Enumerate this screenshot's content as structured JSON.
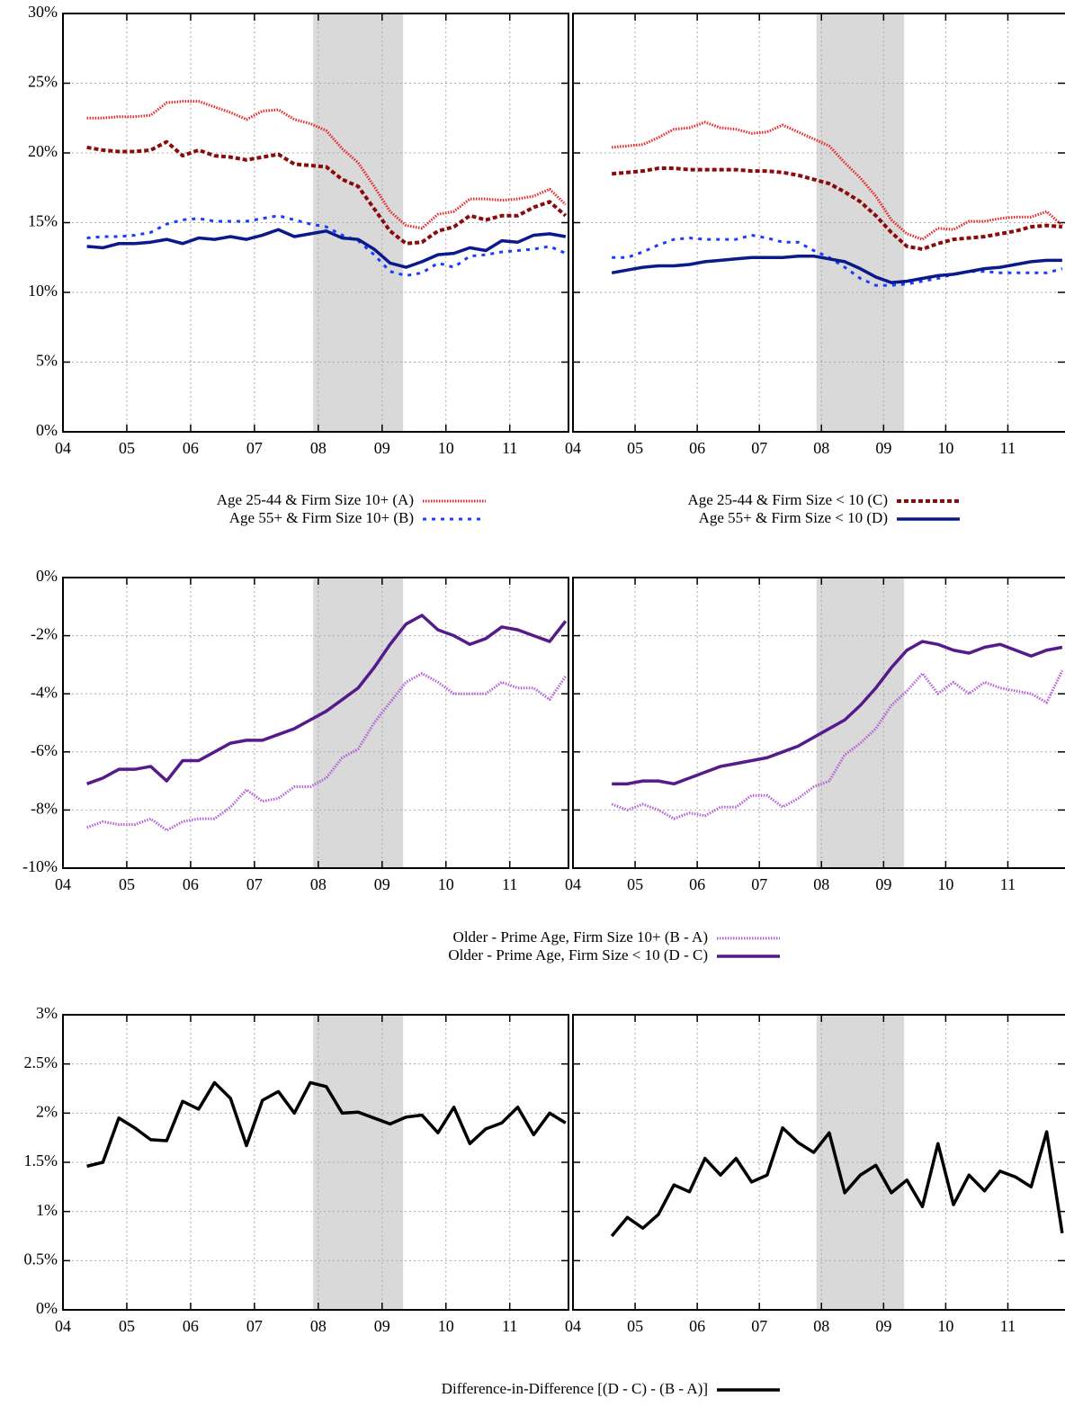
{
  "chart_data": [
    {
      "type": "line",
      "xlim": [
        2004,
        2011.92
      ],
      "xticks": [
        {
          "value": 2004,
          "label": "04"
        },
        {
          "value": 2005,
          "label": "05"
        },
        {
          "value": 2006,
          "label": "06"
        },
        {
          "value": 2007,
          "label": "07"
        },
        {
          "value": 2008,
          "label": "08"
        },
        {
          "value": 2009,
          "label": "09"
        },
        {
          "value": 2010,
          "label": "10"
        },
        {
          "value": 2011,
          "label": "11"
        }
      ],
      "ylim": [
        0,
        30
      ],
      "yticks": [
        {
          "value": 0,
          "label": "0%"
        },
        {
          "value": 5,
          "label": "5%"
        },
        {
          "value": 10,
          "label": "10%"
        },
        {
          "value": 15,
          "label": "15%"
        },
        {
          "value": 20,
          "label": "20%"
        },
        {
          "value": 25,
          "label": "25%"
        },
        {
          "value": 30,
          "label": "30%"
        }
      ],
      "grid": true,
      "shade": [
        2007.92,
        2009.33
      ],
      "x": [
        [
          2004.375,
          2004.625,
          2004.875,
          2005.125,
          2005.375,
          2005.625,
          2005.875,
          2006.125,
          2006.375,
          2006.625,
          2006.875,
          2007.125,
          2007.375,
          2007.625,
          2007.875,
          2008.125,
          2008.375,
          2008.625,
          2008.875,
          2009.125,
          2009.375,
          2009.625,
          2009.875,
          2010.125,
          2010.375,
          2010.625,
          2010.875,
          2011.125,
          2011.375,
          2011.625,
          2011.875
        ],
        [
          2004.625,
          2004.875,
          2005.125,
          2005.375,
          2005.625,
          2005.875,
          2006.125,
          2006.375,
          2006.625,
          2006.875,
          2007.125,
          2007.375,
          2007.625,
          2007.875,
          2008.125,
          2008.375,
          2008.625,
          2008.875,
          2009.125,
          2009.375,
          2009.625,
          2009.875,
          2010.125,
          2010.375,
          2010.625,
          2010.875,
          2011.125,
          2011.375,
          2011.625,
          2011.875
        ]
      ],
      "series": [
        {
          "name": "Age 25-44 & Firm Size 10+ (A)",
          "color": "#e8262a",
          "style": "dotted",
          "values": [
            [
              22.5,
              22.5,
              22.6,
              22.6,
              22.7,
              23.6,
              23.7,
              23.7,
              23.3,
              22.9,
              22.4,
              23.0,
              23.1,
              22.4,
              22.1,
              21.6,
              20.3,
              19.3,
              17.6,
              15.8,
              14.8,
              14.6,
              15.6,
              15.8,
              16.7,
              16.7,
              16.6,
              16.7,
              16.9,
              17.4,
              16.3
            ],
            [
              20.4,
              20.5,
              20.6,
              21.1,
              21.7,
              21.8,
              22.2,
              21.8,
              21.7,
              21.4,
              21.5,
              22.0,
              21.5,
              21.0,
              20.5,
              19.3,
              18.2,
              16.9,
              15.2,
              14.2,
              13.8,
              14.6,
              14.5,
              15.1,
              15.1,
              15.3,
              15.4,
              15.4,
              15.8,
              14.8
            ]
          ]
        },
        {
          "name": "Age 55+ & Firm Size 10+ (B)",
          "color": "#1a3cff",
          "style": "sparse",
          "values": [
            [
              13.9,
              14.0,
              14.0,
              14.1,
              14.3,
              14.9,
              15.2,
              15.3,
              15.1,
              15.1,
              15.1,
              15.3,
              15.5,
              15.2,
              14.9,
              14.7,
              14.1,
              13.7,
              12.7,
              11.5,
              11.2,
              11.4,
              12.1,
              11.8,
              12.6,
              12.7,
              12.9,
              13.0,
              13.1,
              13.3,
              12.8
            ],
            [
              12.5,
              12.5,
              12.9,
              13.4,
              13.8,
              13.9,
              13.8,
              13.8,
              13.8,
              14.1,
              13.9,
              13.6,
              13.6,
              13.0,
              12.5,
              11.8,
              11.0,
              10.5,
              10.5,
              10.6,
              10.8,
              11.0,
              11.3,
              11.5,
              11.5,
              11.4,
              11.4,
              11.4,
              11.4,
              11.7
            ]
          ]
        },
        {
          "name": "Age 25-44 & Firm Size < 10 (C)",
          "color": "#8b0a0a",
          "style": "dashed",
          "values": [
            [
              20.4,
              20.2,
              20.1,
              20.1,
              20.2,
              20.8,
              19.8,
              20.2,
              19.8,
              19.7,
              19.5,
              19.7,
              19.9,
              19.2,
              19.1,
              19.0,
              18.1,
              17.6,
              16.0,
              14.4,
              13.5,
              13.6,
              14.4,
              14.7,
              15.5,
              15.2,
              15.5,
              15.5,
              16.1,
              16.5,
              15.5
            ],
            [
              18.5,
              18.6,
              18.7,
              18.9,
              18.9,
              18.8,
              18.8,
              18.8,
              18.8,
              18.7,
              18.7,
              18.6,
              18.4,
              18.1,
              17.8,
              17.2,
              16.5,
              15.5,
              14.3,
              13.3,
              13.1,
              13.5,
              13.8,
              13.9,
              14.0,
              14.2,
              14.4,
              14.7,
              14.8,
              14.7
            ]
          ]
        },
        {
          "name": "Age 55+ & Firm Size < 10 (D)",
          "color": "#0a1a8a",
          "style": "solid",
          "values": [
            [
              13.3,
              13.2,
              13.5,
              13.5,
              13.6,
              13.8,
              13.5,
              13.9,
              13.8,
              14.0,
              13.8,
              14.1,
              14.5,
              14.0,
              14.2,
              14.4,
              13.9,
              13.8,
              13.1,
              12.1,
              11.8,
              12.2,
              12.7,
              12.8,
              13.2,
              13.0,
              13.7,
              13.6,
              14.1,
              14.2,
              14.0
            ],
            [
              11.4,
              11.6,
              11.8,
              11.9,
              11.9,
              12.0,
              12.2,
              12.3,
              12.4,
              12.5,
              12.5,
              12.5,
              12.6,
              12.6,
              12.4,
              12.2,
              11.7,
              11.1,
              10.7,
              10.8,
              11.0,
              11.2,
              11.3,
              11.5,
              11.7,
              11.8,
              12.0,
              12.2,
              12.3,
              12.3
            ]
          ]
        }
      ]
    },
    {
      "type": "line",
      "xlim": [
        2004,
        2011.92
      ],
      "xticks": [
        {
          "value": 2004,
          "label": "04"
        },
        {
          "value": 2005,
          "label": "05"
        },
        {
          "value": 2006,
          "label": "06"
        },
        {
          "value": 2007,
          "label": "07"
        },
        {
          "value": 2008,
          "label": "08"
        },
        {
          "value": 2009,
          "label": "09"
        },
        {
          "value": 2010,
          "label": "10"
        },
        {
          "value": 2011,
          "label": "11"
        }
      ],
      "ylim": [
        -10,
        0
      ],
      "yticks": [
        {
          "value": -10,
          "label": "-10%"
        },
        {
          "value": -8,
          "label": "-8%"
        },
        {
          "value": -6,
          "label": "-6%"
        },
        {
          "value": -4,
          "label": "-4%"
        },
        {
          "value": -2,
          "label": "-2%"
        },
        {
          "value": 0,
          "label": "0%"
        }
      ],
      "grid": true,
      "shade": [
        2007.92,
        2009.33
      ],
      "x": [
        [
          2004.375,
          2004.625,
          2004.875,
          2005.125,
          2005.375,
          2005.625,
          2005.875,
          2006.125,
          2006.375,
          2006.625,
          2006.875,
          2007.125,
          2007.375,
          2007.625,
          2007.875,
          2008.125,
          2008.375,
          2008.625,
          2008.875,
          2009.125,
          2009.375,
          2009.625,
          2009.875,
          2010.125,
          2010.375,
          2010.625,
          2010.875,
          2011.125,
          2011.375,
          2011.625,
          2011.875
        ],
        [
          2004.625,
          2004.875,
          2005.125,
          2005.375,
          2005.625,
          2005.875,
          2006.125,
          2006.375,
          2006.625,
          2006.875,
          2007.125,
          2007.375,
          2007.625,
          2007.875,
          2008.125,
          2008.375,
          2008.625,
          2008.875,
          2009.125,
          2009.375,
          2009.625,
          2009.875,
          2010.125,
          2010.375,
          2010.625,
          2010.875,
          2011.125,
          2011.375,
          2011.625,
          2011.875
        ]
      ],
      "series": [
        {
          "name": "Older - Prime Age, Firm Size 10+ (B - A)",
          "color": "#b462d6",
          "style": "dotted",
          "values": [
            [
              -8.6,
              -8.4,
              -8.5,
              -8.5,
              -8.3,
              -8.7,
              -8.4,
              -8.3,
              -8.3,
              -7.9,
              -7.3,
              -7.7,
              -7.6,
              -7.2,
              -7.2,
              -6.9,
              -6.2,
              -5.9,
              -5.0,
              -4.3,
              -3.6,
              -3.3,
              -3.6,
              -4.0,
              -4.0,
              -4.0,
              -3.6,
              -3.8,
              -3.8,
              -4.2,
              -3.4
            ],
            [
              -7.8,
              -8.0,
              -7.8,
              -8.0,
              -8.3,
              -8.1,
              -8.2,
              -7.9,
              -7.9,
              -7.5,
              -7.5,
              -7.9,
              -7.6,
              -7.2,
              -7.0,
              -6.1,
              -5.7,
              -5.2,
              -4.4,
              -3.9,
              -3.3,
              -4.0,
              -3.6,
              -4.0,
              -3.6,
              -3.8,
              -3.9,
              -4.0,
              -4.3,
              -3.2
            ]
          ]
        },
        {
          "name": "Older - Prime Age, Firm Size < 10 (D - C)",
          "color": "#551a8b",
          "style": "solid",
          "values": [
            [
              -7.1,
              -6.9,
              -6.6,
              -6.6,
              -6.5,
              -7.0,
              -6.3,
              -6.3,
              -6.0,
              -5.7,
              -5.6,
              -5.6,
              -5.4,
              -5.2,
              -4.9,
              -4.6,
              -4.2,
              -3.8,
              -3.1,
              -2.3,
              -1.6,
              -1.3,
              -1.8,
              -2.0,
              -2.3,
              -2.1,
              -1.7,
              -1.8,
              -2.0,
              -2.2,
              -1.5
            ],
            [
              -7.1,
              -7.1,
              -7.0,
              -7.0,
              -7.1,
              -6.9,
              -6.7,
              -6.5,
              -6.4,
              -6.3,
              -6.2,
              -6.0,
              -5.8,
              -5.5,
              -5.2,
              -4.9,
              -4.4,
              -3.8,
              -3.1,
              -2.5,
              -2.2,
              -2.3,
              -2.5,
              -2.6,
              -2.4,
              -2.3,
              -2.5,
              -2.7,
              -2.5,
              -2.4
            ]
          ]
        }
      ]
    },
    {
      "type": "line",
      "xlim": [
        2004,
        2011.92
      ],
      "xticks": [
        {
          "value": 2004,
          "label": "04"
        },
        {
          "value": 2005,
          "label": "05"
        },
        {
          "value": 2006,
          "label": "06"
        },
        {
          "value": 2007,
          "label": "07"
        },
        {
          "value": 2008,
          "label": "08"
        },
        {
          "value": 2009,
          "label": "09"
        },
        {
          "value": 2010,
          "label": "10"
        },
        {
          "value": 2011,
          "label": "11"
        }
      ],
      "ylim": [
        0,
        3
      ],
      "yticks": [
        {
          "value": 0,
          "label": "0%"
        },
        {
          "value": 0.5,
          "label": "0.5%"
        },
        {
          "value": 1,
          "label": "1%"
        },
        {
          "value": 1.5,
          "label": "1.5%"
        },
        {
          "value": 2,
          "label": "2%"
        },
        {
          "value": 2.5,
          "label": "2.5%"
        },
        {
          "value": 3,
          "label": "3%"
        }
      ],
      "grid": true,
      "shade": [
        2007.92,
        2009.33
      ],
      "x": [
        [
          2004.375,
          2004.625,
          2004.875,
          2005.125,
          2005.375,
          2005.625,
          2005.875,
          2006.125,
          2006.375,
          2006.625,
          2006.875,
          2007.125,
          2007.375,
          2007.625,
          2007.875,
          2008.125,
          2008.375,
          2008.625,
          2008.875,
          2009.125,
          2009.375,
          2009.625,
          2009.875,
          2010.125,
          2010.375,
          2010.625,
          2010.875,
          2011.125,
          2011.375,
          2011.625,
          2011.875
        ],
        [
          2004.625,
          2004.875,
          2005.125,
          2005.375,
          2005.625,
          2005.875,
          2006.125,
          2006.375,
          2006.625,
          2006.875,
          2007.125,
          2007.375,
          2007.625,
          2007.875,
          2008.125,
          2008.375,
          2008.625,
          2008.875,
          2009.125,
          2009.375,
          2009.625,
          2009.875,
          2010.125,
          2010.375,
          2010.625,
          2010.875,
          2011.125,
          2011.375,
          2011.625,
          2011.875
        ]
      ],
      "series": [
        {
          "name": "Difference-in-Difference [(D - C) - (B - A)]",
          "color": "#000000",
          "style": "solid",
          "values": [
            [
              1.46,
              1.5,
              1.95,
              1.85,
              1.73,
              1.72,
              2.12,
              2.04,
              2.31,
              2.15,
              1.67,
              2.13,
              2.22,
              2.0,
              2.31,
              2.27,
              2.0,
              2.01,
              1.95,
              1.89,
              1.96,
              1.98,
              1.8,
              2.06,
              1.69,
              1.84,
              1.9,
              2.06,
              1.78,
              2.0,
              1.9
            ],
            [
              0.75,
              0.94,
              0.83,
              0.97,
              1.27,
              1.2,
              1.54,
              1.37,
              1.54,
              1.3,
              1.37,
              1.85,
              1.7,
              1.6,
              1.8,
              1.19,
              1.37,
              1.47,
              1.19,
              1.32,
              1.05,
              1.69,
              1.07,
              1.37,
              1.21,
              1.41,
              1.35,
              1.25,
              1.81,
              0.78
            ]
          ]
        }
      ]
    }
  ]
}
